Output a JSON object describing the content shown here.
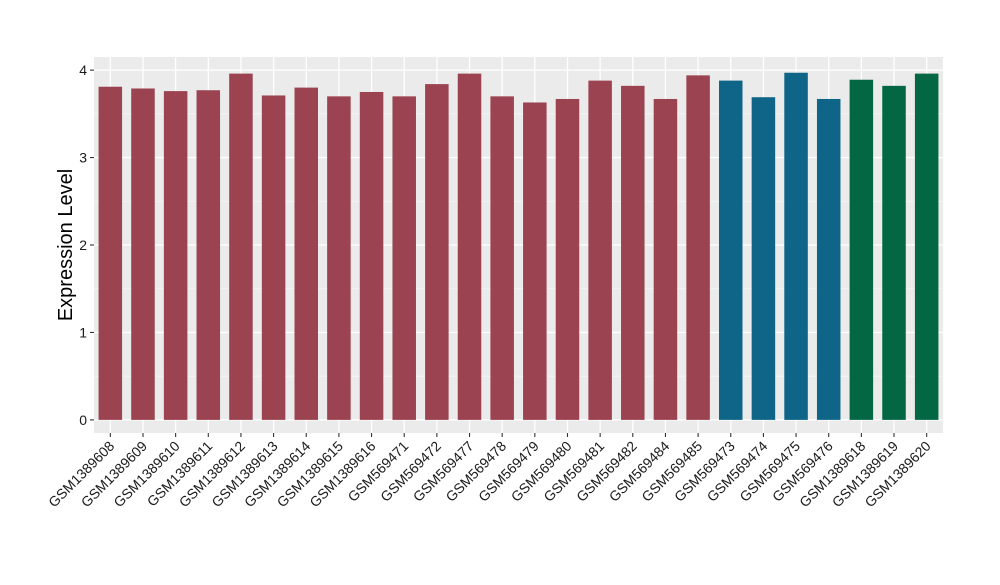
{
  "chart_data": {
    "type": "bar",
    "title": "",
    "xlabel": "",
    "ylabel": "Expression Level",
    "ylim": [
      -0.15,
      4.15
    ],
    "yticks": [
      0,
      1,
      2,
      3,
      4
    ],
    "grid": true,
    "legend": "none",
    "colors": {
      "panel_background": "#ebebeb",
      "grid_major": "#ffffff",
      "grid_minor": "#f5f5f5",
      "group_1": "#9b4350",
      "group_2": "#0e6587",
      "group_3": "#046744"
    },
    "categories": [
      "GSM1389608",
      "GSM1389609",
      "GSM1389610",
      "GSM1389611",
      "GSM1389612",
      "GSM1389613",
      "GSM1389614",
      "GSM1389615",
      "GSM1389616",
      "GSM569471",
      "GSM569472",
      "GSM569477",
      "GSM569478",
      "GSM569479",
      "GSM569480",
      "GSM569481",
      "GSM569482",
      "GSM569484",
      "GSM569485",
      "GSM569473",
      "GSM569474",
      "GSM569475",
      "GSM569476",
      "GSM1389618",
      "GSM1389619",
      "GSM1389620"
    ],
    "values": [
      3.81,
      3.79,
      3.76,
      3.77,
      3.96,
      3.71,
      3.8,
      3.7,
      3.75,
      3.7,
      3.84,
      3.96,
      3.7,
      3.63,
      3.67,
      3.88,
      3.82,
      3.67,
      3.94,
      3.88,
      3.69,
      3.97,
      3.67,
      3.89,
      3.82,
      3.96
    ],
    "groups": [
      1,
      1,
      1,
      1,
      1,
      1,
      1,
      1,
      1,
      1,
      1,
      1,
      1,
      1,
      1,
      1,
      1,
      1,
      1,
      2,
      2,
      2,
      2,
      3,
      3,
      3
    ]
  }
}
